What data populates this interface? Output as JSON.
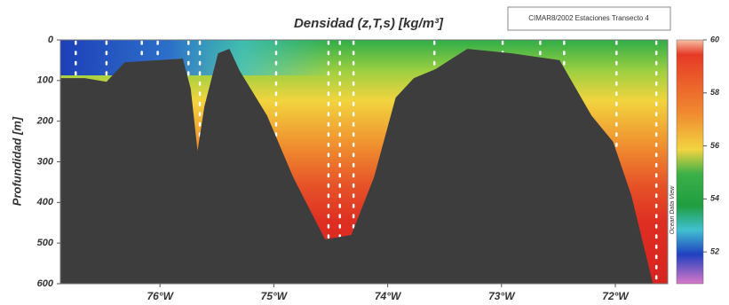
{
  "chart_data": {
    "type": "section",
    "title": "Densidad (z,T,s) [kg/m³]",
    "legend_text": "CIMAR8/2002 Estaciones Transecto 4",
    "ylabel": "Profundidad [m]",
    "colorbar_caption": "Ocean Data View",
    "xlim": [
      -76.875,
      -71.54
    ],
    "xticks": [
      {
        "value": -76,
        "label": "76°W"
      },
      {
        "value": -75,
        "label": "75°W"
      },
      {
        "value": -74,
        "label": "74°W"
      },
      {
        "value": -73,
        "label": "73°W"
      },
      {
        "value": -72,
        "label": "72°W"
      }
    ],
    "ylim": [
      0,
      600
    ],
    "yticks": [
      0,
      100,
      200,
      300,
      400,
      500,
      600
    ],
    "clim": [
      50.8,
      60
    ],
    "cticks": [
      52,
      54,
      56,
      58,
      60
    ],
    "bathymetry": {
      "color": "#3d3d3d",
      "x": [
        -76.875,
        -76.66,
        -76.47,
        -76.31,
        -75.8,
        -75.73,
        -75.67,
        -75.61,
        -75.49,
        -75.39,
        -75.3,
        -75.06,
        -74.83,
        -74.55,
        -74.32,
        -74.12,
        -73.93,
        -73.77,
        -73.58,
        -73.3,
        -72.91,
        -72.49,
        -72.21,
        -72.02,
        -71.86,
        -71.67
      ],
      "depth": [
        94,
        94,
        103,
        55,
        46,
        120,
        273,
        164,
        33,
        22,
        76,
        186,
        338,
        491,
        480,
        338,
        142,
        94,
        72,
        22,
        33,
        50,
        186,
        251,
        382,
        600
      ]
    },
    "stations": [
      -76.74,
      -76.47,
      -76.16,
      -76.02,
      -75.75,
      -75.65,
      -74.98,
      -74.52,
      -74.42,
      -74.3,
      -73.59,
      -72.99,
      -72.66,
      -72.45,
      -71.99,
      -71.64
    ]
  }
}
